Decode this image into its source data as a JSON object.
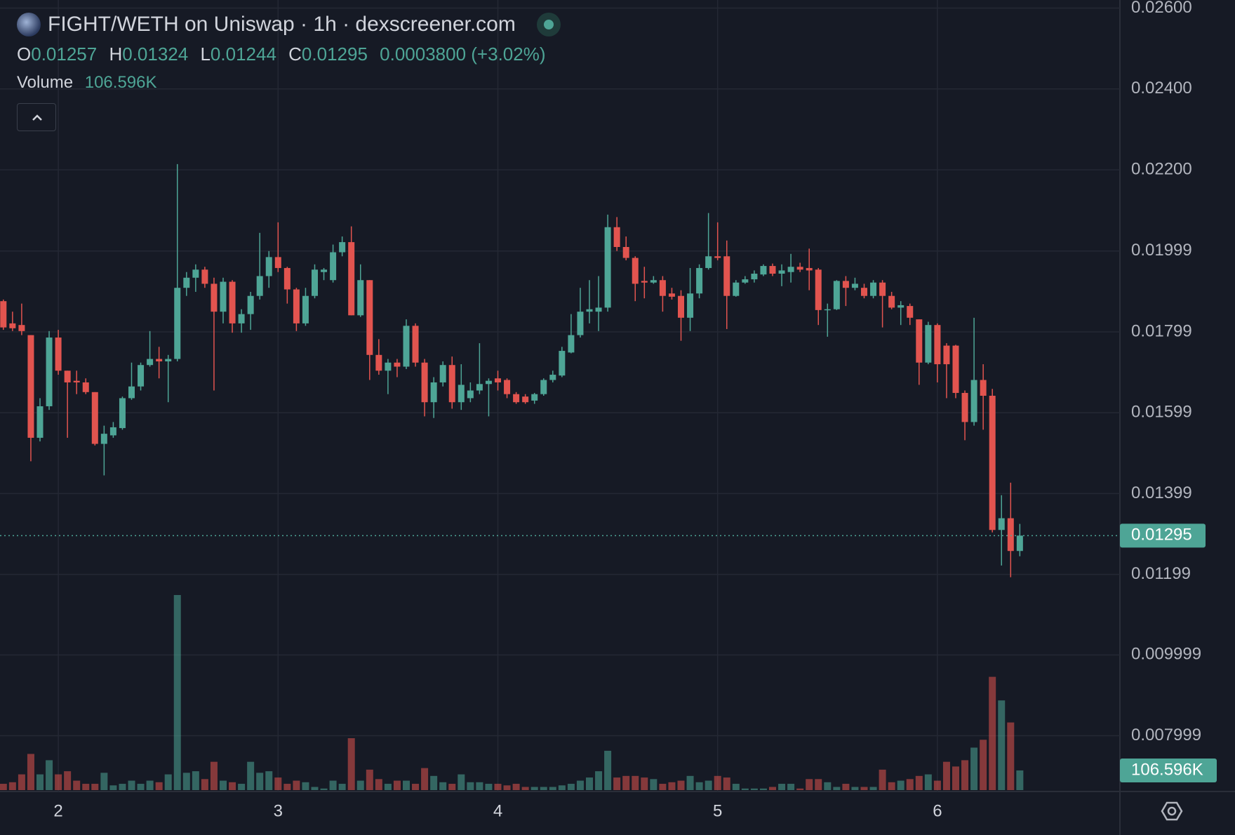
{
  "header": {
    "title": "FIGHT/WETH on Uniswap · 1h · dexscreener.com",
    "open_label": "O",
    "high_label": "H",
    "low_label": "L",
    "close_label": "C",
    "change": "0.0003800 (+3.02%)",
    "volume_title": "Volume"
  },
  "chart_data": {
    "type": "candlestick",
    "categories": [
      null,
      null,
      null,
      null,
      null,
      null,
      "2",
      null,
      null,
      null,
      null,
      null,
      null,
      null,
      null,
      null,
      null,
      null,
      null,
      null,
      null,
      null,
      null,
      null,
      null,
      null,
      null,
      null,
      null,
      null,
      "3",
      null,
      null,
      null,
      null,
      null,
      null,
      null,
      null,
      null,
      null,
      null,
      null,
      null,
      null,
      null,
      null,
      null,
      null,
      null,
      null,
      null,
      null,
      null,
      "4",
      null,
      null,
      null,
      null,
      null,
      null,
      null,
      null,
      null,
      null,
      null,
      null,
      null,
      null,
      null,
      null,
      null,
      null,
      null,
      null,
      null,
      null,
      null,
      "5",
      null,
      null,
      null,
      null,
      null,
      null,
      null,
      null,
      null,
      null,
      null,
      null,
      null,
      null,
      null,
      null,
      null,
      null,
      null,
      null,
      null,
      null,
      null,
      "6",
      null,
      null,
      null,
      null,
      null,
      null,
      null,
      null,
      null
    ],
    "open": [
      0.01875,
      0.0182,
      0.01816,
      0.01791,
      0.01537,
      0.01615,
      0.01785,
      0.01703,
      0.01678,
      0.01674,
      0.0165,
      0.01522,
      0.01543,
      0.01561,
      0.01635,
      0.01664,
      0.01717,
      0.01732,
      0.01726,
      0.01732,
      0.01908,
      0.01933,
      0.01953,
      0.01918,
      0.01849,
      0.01923,
      0.0182,
      0.01843,
      0.01888,
      0.01937,
      0.01984,
      0.01957,
      0.01904,
      0.0182,
      0.01888,
      0.01947,
      0.01927,
      0.01996,
      0.02021,
      0.0184,
      0.01927,
      0.01742,
      0.01703,
      0.01723,
      0.01713,
      0.01814,
      0.01723,
      0.01625,
      0.01674,
      0.01717,
      0.01625,
      0.01635,
      0.01654,
      0.0167,
      0.01684,
      0.0168,
      0.01645,
      0.01639,
      0.01629,
      0.01645,
      0.0168,
      0.01691,
      0.01748,
      0.01791,
      0.01849,
      0.01849,
      0.01859,
      0.02058,
      0.02009,
      0.01982,
      0.01925,
      0.01921,
      0.01927,
      0.01894,
      0.01888,
      0.01834,
      0.01894,
      0.01957,
      0.01986,
      0.01986,
      0.01888,
      0.01921,
      0.01929,
      0.01941,
      0.01962,
      0.01943,
      0.01947,
      0.0196,
      0.01957,
      0.01953,
      0.01853,
      0.01855,
      0.01925,
      0.01908,
      0.01908,
      0.01888,
      0.01921,
      0.01888,
      0.01859,
      0.01863,
      0.0183,
      0.01723,
      0.01816,
      0.01765,
      0.01765,
      0.01648,
      0.01576,
      0.0168,
      0.01641,
      0.01309,
      0.01338,
      0.01257
    ],
    "high": [
      0.01879,
      0.01849,
      0.01869,
      0.01791,
      0.01635,
      0.01801,
      0.01804,
      0.01703,
      0.01703,
      0.01684,
      0.0165,
      0.01567,
      0.01576,
      0.01639,
      0.01723,
      0.01723,
      0.01801,
      0.01762,
      0.01742,
      0.02214,
      0.01947,
      0.01966,
      0.0196,
      0.01933,
      0.01933,
      0.01927,
      0.01855,
      0.01898,
      0.02044,
      0.01999,
      0.0207,
      0.0196,
      0.01908,
      0.01908,
      0.01966,
      0.01957,
      0.02015,
      0.02035,
      0.0206,
      0.01966,
      0.01927,
      0.01781,
      0.01732,
      0.01732,
      0.0183,
      0.0182,
      0.01732,
      0.01687,
      0.01726,
      0.01738,
      0.01719,
      0.01674,
      0.01771,
      0.01684,
      0.01703,
      0.01684,
      0.0165,
      0.01645,
      0.01648,
      0.01684,
      0.01703,
      0.01762,
      0.01843,
      0.01908,
      0.01927,
      0.01937,
      0.02089,
      0.02083,
      0.02035,
      0.01986,
      0.0196,
      0.01937,
      0.01937,
      0.01908,
      0.01902,
      0.01957,
      0.01966,
      0.02093,
      0.0207,
      0.02025,
      0.01927,
      0.01937,
      0.01951,
      0.01966,
      0.01968,
      0.01966,
      0.01992,
      0.0197,
      0.02005,
      0.01957,
      0.01869,
      0.01927,
      0.01937,
      0.01933,
      0.01918,
      0.01927,
      0.01927,
      0.01898,
      0.01875,
      0.01869,
      0.0183,
      0.01824,
      0.0182,
      0.01771,
      0.01767,
      0.01654,
      0.01834,
      0.01719,
      0.01658,
      0.01395,
      0.01426,
      0.01324
    ],
    "low": [
      0.01804,
      0.01801,
      0.01791,
      0.01479,
      0.01528,
      0.01606,
      0.01693,
      0.01537,
      0.01645,
      0.01645,
      0.01518,
      0.01444,
      0.01537,
      0.01557,
      0.01631,
      0.01654,
      0.01713,
      0.01684,
      0.01625,
      0.01726,
      0.01888,
      0.01898,
      0.01908,
      0.01654,
      0.0182,
      0.01797,
      0.01797,
      0.01804,
      0.01879,
      0.01908,
      0.01947,
      0.01869,
      0.01801,
      0.01814,
      0.01882,
      0.01927,
      0.01921,
      0.01986,
      0.0184,
      0.01836,
      0.0168,
      0.01693,
      0.01645,
      0.01687,
      0.01707,
      0.01713,
      0.0159,
      0.01586,
      0.01664,
      0.01609,
      0.01606,
      0.01625,
      0.01645,
      0.0159,
      0.01654,
      0.01635,
      0.01621,
      0.01621,
      0.01621,
      0.01641,
      0.01674,
      0.01687,
      0.01746,
      0.01785,
      0.0182,
      0.01801,
      0.01849,
      0.01999,
      0.01976,
      0.01875,
      0.01882,
      0.01918,
      0.01849,
      0.01879,
      0.01777,
      0.01801,
      0.01882,
      0.01953,
      0.01976,
      0.01806,
      0.01886,
      0.01918,
      0.01921,
      0.01937,
      0.01937,
      0.01912,
      0.01921,
      0.01947,
      0.01902,
      0.01816,
      0.01787,
      0.01853,
      0.01863,
      0.01902,
      0.01882,
      0.01882,
      0.0181,
      0.01855,
      0.01816,
      0.01816,
      0.01668,
      0.01719,
      0.01674,
      0.01635,
      0.01635,
      0.01531,
      0.01567,
      0.01557,
      0.01303,
      0.01221,
      0.01192,
      0.01244
    ],
    "close": [
      0.0181,
      0.01808,
      0.01801,
      0.01537,
      0.01615,
      0.01785,
      0.01703,
      0.01674,
      0.01674,
      0.0165,
      0.01522,
      0.01547,
      0.01563,
      0.01635,
      0.01664,
      0.01717,
      0.01732,
      0.01726,
      0.01732,
      0.01908,
      0.01933,
      0.01953,
      0.01918,
      0.01849,
      0.01923,
      0.0182,
      0.01843,
      0.01888,
      0.01937,
      0.01984,
      0.01957,
      0.01904,
      0.0182,
      0.01888,
      0.01953,
      0.01953,
      0.01996,
      0.02021,
      0.0184,
      0.01927,
      0.01742,
      0.01703,
      0.01723,
      0.01713,
      0.01814,
      0.01723,
      0.01625,
      0.01674,
      0.01717,
      0.01625,
      0.01668,
      0.01654,
      0.0167,
      0.01678,
      0.01674,
      0.01645,
      0.01625,
      0.01625,
      0.01645,
      0.0168,
      0.01693,
      0.01752,
      0.01791,
      0.01849,
      0.01855,
      0.01859,
      0.02058,
      0.02009,
      0.01982,
      0.01918,
      0.01921,
      0.01927,
      0.01888,
      0.01886,
      0.01834,
      0.01894,
      0.01957,
      0.01986,
      0.01982,
      0.01888,
      0.01921,
      0.01929,
      0.01943,
      0.01962,
      0.01943,
      0.01951,
      0.0196,
      0.01953,
      0.01951,
      0.01853,
      0.01855,
      0.01925,
      0.01908,
      0.01918,
      0.01888,
      0.01921,
      0.01888,
      0.01859,
      0.01865,
      0.01834,
      0.01723,
      0.01816,
      0.01719,
      0.01719,
      0.01648,
      0.01576,
      0.0168,
      0.01641,
      0.01309,
      0.01338,
      0.01257,
      0.01295
    ],
    "volume": [
      34.1,
      42.6,
      85.3,
      196.1,
      85.3,
      162.0,
      85.3,
      102.3,
      51.2,
      34.1,
      34.1,
      93.8,
      25.6,
      34.1,
      51.2,
      34.1,
      51.2,
      42.6,
      85.3,
      1057.5,
      93.8,
      102.3,
      59.7,
      153.5,
      51.2,
      42.6,
      34.1,
      153.5,
      93.8,
      102.3,
      68.2,
      34.1,
      51.2,
      42.6,
      17.1,
      8.5,
      51.2,
      34.1,
      281.4,
      51.2,
      110.9,
      59.7,
      34.1,
      51.2,
      51.2,
      34.1,
      119.4,
      76.8,
      42.6,
      34.1,
      85.3,
      42.6,
      42.6,
      34.1,
      34.1,
      25.6,
      34.1,
      17.1,
      17.1,
      17.1,
      17.1,
      25.6,
      34.1,
      51.2,
      68.2,
      102.3,
      213.2,
      68.2,
      76.8,
      76.8,
      68.2,
      59.7,
      34.1,
      42.6,
      51.2,
      76.8,
      42.6,
      51.2,
      76.8,
      68.2,
      34.1,
      8.5,
      8.5,
      8.5,
      17.1,
      34.1,
      34.1,
      8.5,
      59.7,
      59.7,
      42.6,
      17.1,
      34.1,
      17.1,
      17.1,
      17.1,
      110.9,
      42.6,
      51.2,
      59.7,
      76.8,
      85.3,
      51.2,
      153.5,
      127.9,
      162.0,
      230.3,
      272.9,
      614.0,
      486.1,
      366.7,
      106.596
    ],
    "volume_label": "106.596K",
    "ylim": [
      0.00662,
      0.0262
    ],
    "yticks": [
      {
        "value": 0.026,
        "label": "0.02600"
      },
      {
        "value": 0.024,
        "label": "0.02400"
      },
      {
        "value": 0.022,
        "label": "0.02200"
      },
      0.01999,
      0.01799,
      0.01599,
      0.01399,
      0.01199,
      0.009999,
      0.007999
    ],
    "up_color": "#4ea596",
    "down_color": "#e2544f",
    "grid": true
  }
}
